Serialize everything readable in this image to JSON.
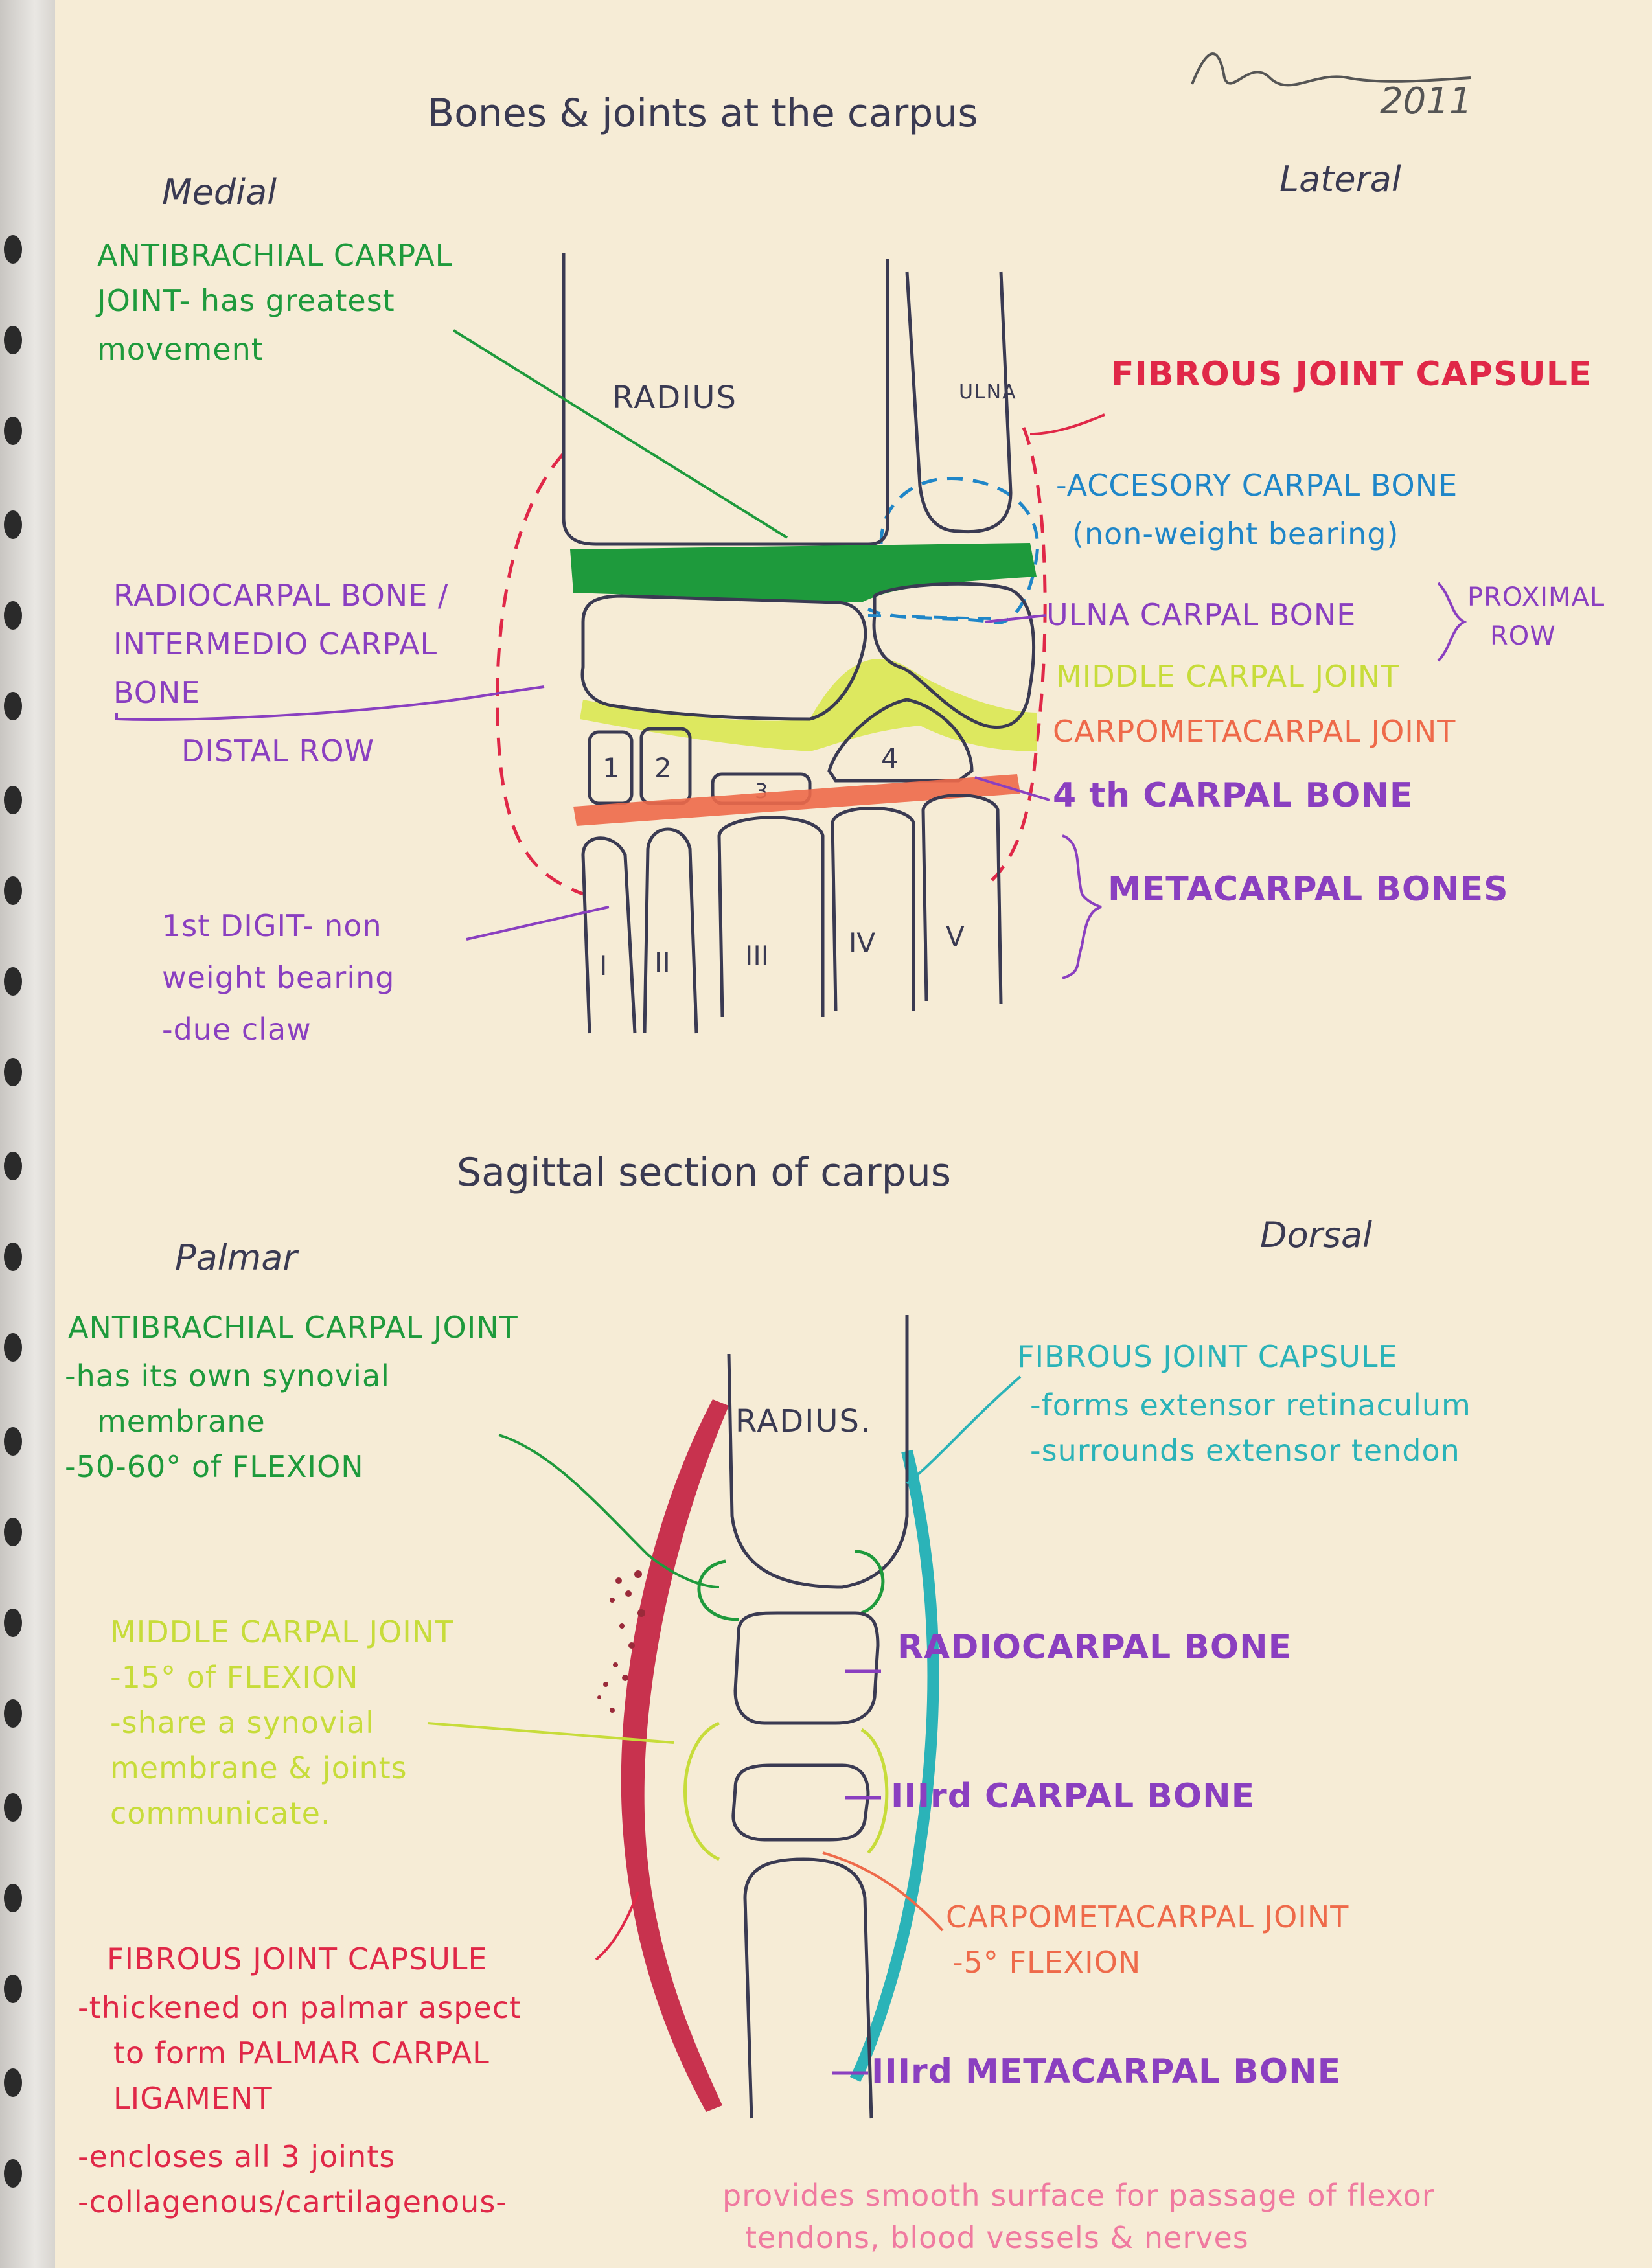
{
  "signature_year": "2011",
  "titles": {
    "top": "Bones & joints at the carpus",
    "bottom": "Sagittal section of carpus"
  },
  "orientation": {
    "top_left": "Medial",
    "top_right": "Lateral",
    "bottom_left": "Palmar",
    "bottom_right": "Dorsal"
  },
  "top_diagram": {
    "bones": {
      "radius": "RADIUS",
      "ulna": "ULNA",
      "carpal_numbers": [
        "1",
        "2",
        "3",
        "4"
      ],
      "metacarpal_numerals": [
        "I",
        "II",
        "III",
        "IV",
        "V"
      ]
    },
    "labels": {
      "antibrachial_1": "ANTIBRACHIAL CARPAL",
      "antibrachial_2": "JOINT- has greatest",
      "antibrachial_3": "movement",
      "radiocarpal_1": "RADIOCARPAL BONE /",
      "radiocarpal_2": "INTERMEDIO CARPAL",
      "radiocarpal_3": "BONE",
      "distal_row": "DISTAL ROW",
      "first_digit_1": "1st DIGIT- non",
      "first_digit_2": "weight bearing",
      "first_digit_3": "-due claw",
      "fibrous_capsule": "FIBROUS JOINT CAPSULE",
      "accessory_1": "-ACCESORY CARPAL BONE",
      "accessory_2": "(non-weight bearing)",
      "ulna_carpal": "ULNA CARPAL BONE",
      "proximal_row_1": "PROXIMAL",
      "proximal_row_2": "ROW",
      "middle_carpal": "MIDDLE CARPAL JOINT",
      "carpometacarpal": "CARPOMETACARPAL JOINT",
      "fourth_carpal": "4 th CARPAL BONE",
      "metacarpal_bones": "METACARPAL BONES"
    }
  },
  "bottom_diagram": {
    "radius": "RADIUS.",
    "labels": {
      "antibrachial_1": "ANTIBRACHIAL CARPAL JOINT",
      "antibrachial_2": "-has its own synovial",
      "antibrachial_3": "membrane",
      "antibrachial_4": "-50-60° of FLEXION",
      "fibrous_dorsal_1": "FIBROUS JOINT CAPSULE",
      "fibrous_dorsal_2": "-forms extensor retinaculum",
      "fibrous_dorsal_3": "-surrounds extensor tendon",
      "middle_1": "MIDDLE CARPAL JOINT",
      "middle_2": "-15° of FLEXION",
      "middle_3": "-share a synovial",
      "middle_4": "membrane & joints",
      "middle_5": "communicate.",
      "radiocarpal": "RADIOCARPAL BONE",
      "third_carpal": "IIIrd CARPAL BONE",
      "cmc_1": "CARPOMETACARPAL JOINT",
      "cmc_2": "-5° FLEXION",
      "third_metacarpal": "IIIrd METACARPAL BONE",
      "fibrous_palmar_1": "FIBROUS JOINT CAPSULE",
      "fibrous_palmar_2": "-thickened on palmar aspect",
      "fibrous_palmar_3": "to form PALMAR CARPAL",
      "fibrous_palmar_4": "LIGAMENT",
      "fibrous_palmar_5": "-encloses all 3 joints",
      "fibrous_palmar_6": "-collagenous/cartilagenous-",
      "provides_1": "provides smooth surface for passage of flexor",
      "provides_2": "tendons, blood vessels & nerves"
    }
  },
  "colors": {
    "ink": "#3a3a52",
    "green": "#1e9a3c",
    "red": "#e02848",
    "blue": "#1f86c8",
    "purple": "#8a3fc0",
    "yellow": "#b7cf22",
    "orange": "#ee6a4a",
    "teal": "#2bb3b8",
    "pink": "#f07aa0"
  }
}
